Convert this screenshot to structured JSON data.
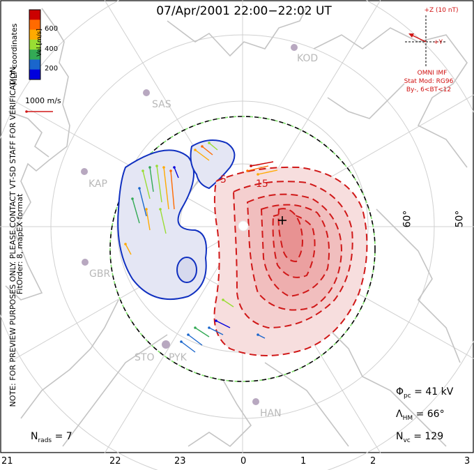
{
  "title": "07/Apr/2001 22:00−22:02 UT",
  "left_notes": {
    "preview": "NOTE: FOR PREVIEW PURPOSES ONLY. PLEASE CONTACT VT-SD STAFF FOR VERIFICATION.",
    "fitorder": "FitOrder: 8, mapEX format",
    "coords": "MLT coordinates"
  },
  "colorbar": {
    "label": "Vel [m/s]",
    "ticks": [
      "600",
      "400",
      "200"
    ],
    "colors": [
      "#cc0000",
      "#ff6a00",
      "#ffaa00",
      "#99dd33",
      "#33aa55",
      "#1a66cc",
      "#0000dd"
    ]
  },
  "scale_vector": {
    "label": "1000 m/s"
  },
  "imf": {
    "z_label": "+Z (10 nT)",
    "y_label": "+Y",
    "source": "OMNI IMF",
    "model": "Stat Mod: RG96",
    "condition": "By-, 6<BT<12"
  },
  "stations": [
    "SAS",
    "KOD",
    "KAP",
    "GBR",
    "STO",
    "PYK",
    "HAN"
  ],
  "latitudes": [
    "60°",
    "50°"
  ],
  "contour_labels": [
    "-5",
    "15"
  ],
  "stats": {
    "phi_pc": {
      "symbol": "Φ",
      "sub": "pc",
      "value": "= 41 kV"
    },
    "lambda_hm": {
      "symbol": "Λ",
      "sub": "HM",
      "value": "= 66°"
    },
    "n_vc": {
      "symbol": "N",
      "sub": "vc",
      "value": "= 129"
    },
    "n_rads": {
      "symbol": "N",
      "sub": "rads",
      "value": "= 7"
    }
  },
  "mlt_ticks": [
    "21",
    "22",
    "23",
    "0",
    "1",
    "2",
    "3"
  ],
  "colors": {
    "negative_fill": "#e4e6f4",
    "negative_line": "#1030c0",
    "positive_fill": "#f3c9c9",
    "positive_line": "#d01818",
    "coast": "#c8c8c8",
    "grid": "#cfcfcf",
    "hmb_dash_a": "#000000",
    "hmb_dash_b": "#80e060"
  }
}
